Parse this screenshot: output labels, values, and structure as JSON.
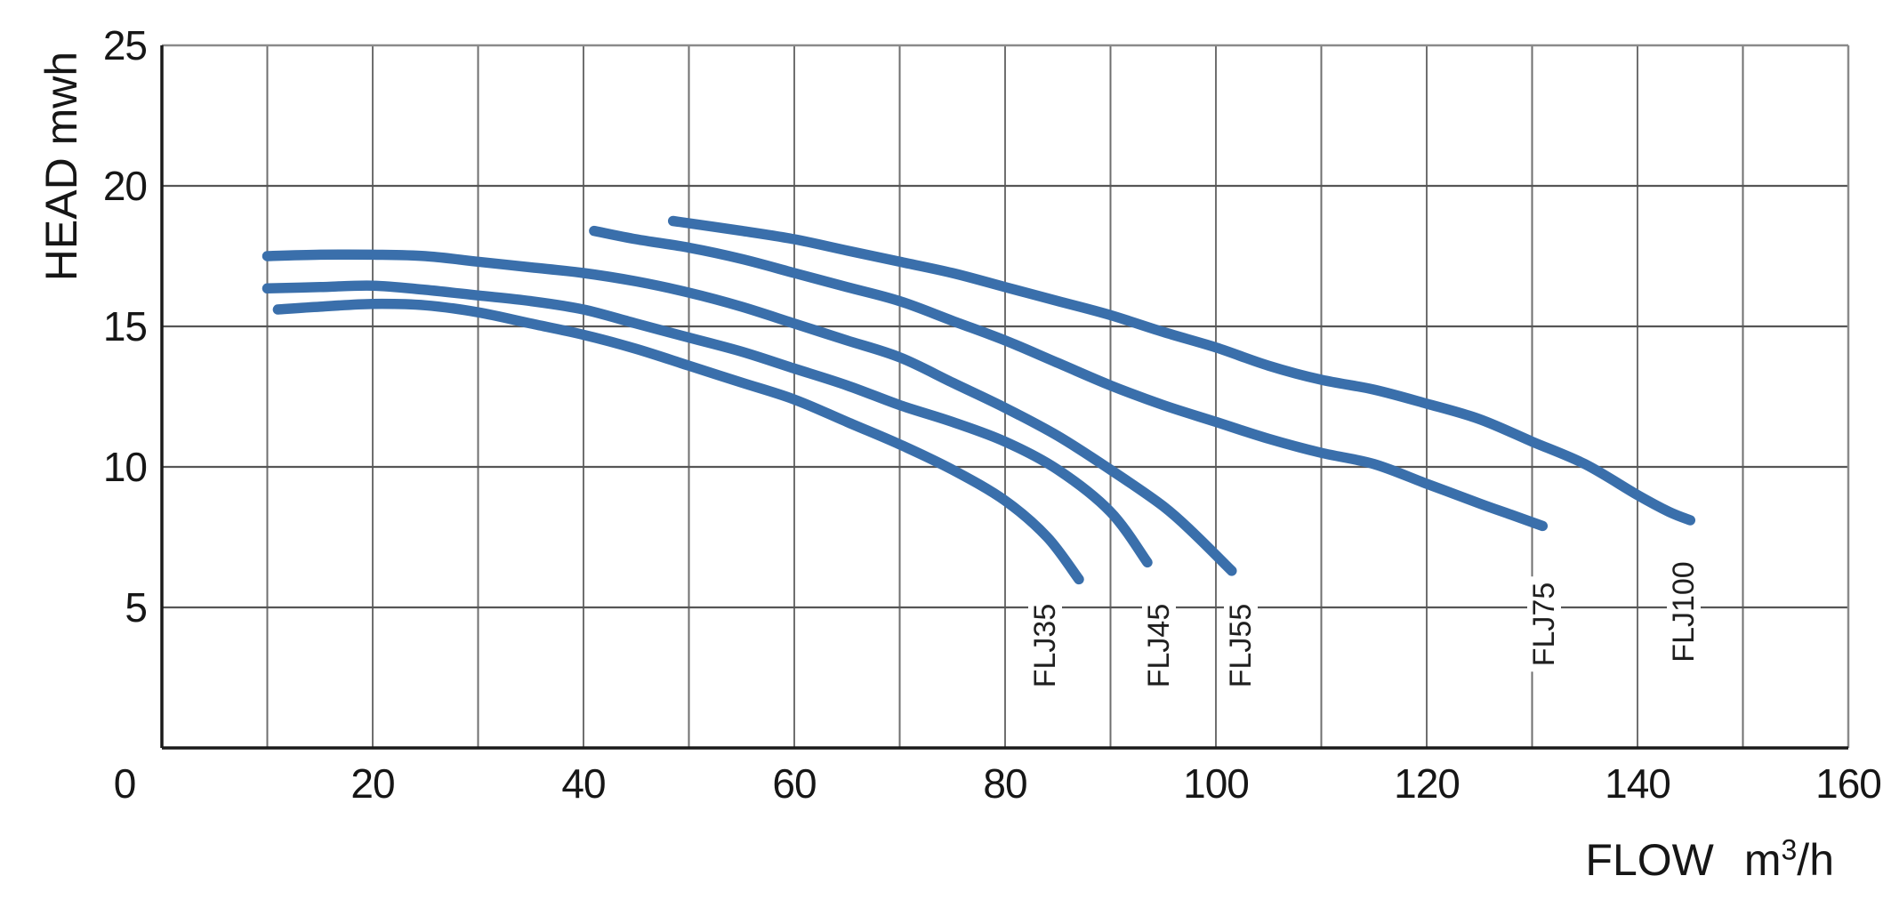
{
  "chart_data": {
    "type": "line",
    "title": "",
    "xlabel": "FLOW m3/h",
    "xlabel_parts": {
      "prefix": "FLOW",
      "unit_base": "m",
      "unit_sup": "3",
      "unit_suffix": "/h"
    },
    "ylabel": "HEAD mwh",
    "x_axis": {
      "min": 0,
      "max": 160,
      "label_step": 20,
      "grid_step": 10,
      "ticks": [
        0,
        20,
        40,
        60,
        80,
        100,
        120,
        140,
        160
      ]
    },
    "y_axis": {
      "min": 0,
      "max": 25,
      "label_step": 5,
      "grid_step": 5,
      "ticks": [
        5,
        10,
        15,
        20,
        25
      ]
    },
    "grid": true,
    "legend_position": "labels-at-curve-ends",
    "curve_color": "#3a6fab",
    "series": [
      {
        "name": "FLJ35",
        "label_pos": {
          "flow": 83.8,
          "head": 3.65
        },
        "points": [
          [
            11,
            15.6
          ],
          [
            15,
            15.7
          ],
          [
            20,
            15.8
          ],
          [
            25,
            15.75
          ],
          [
            30,
            15.5
          ],
          [
            35,
            15.1
          ],
          [
            40,
            14.7
          ],
          [
            45,
            14.2
          ],
          [
            50,
            13.6
          ],
          [
            55,
            13.0
          ],
          [
            60,
            12.4
          ],
          [
            65,
            11.6
          ],
          [
            70,
            10.8
          ],
          [
            75,
            9.9
          ],
          [
            80,
            8.8
          ],
          [
            84,
            7.5
          ],
          [
            87,
            6.0
          ]
        ]
      },
      {
        "name": "FLJ45",
        "label_pos": {
          "flow": 94.6,
          "head": 3.65
        },
        "points": [
          [
            10,
            16.35
          ],
          [
            15,
            16.4
          ],
          [
            20,
            16.45
          ],
          [
            25,
            16.3
          ],
          [
            30,
            16.1
          ],
          [
            35,
            15.9
          ],
          [
            40,
            15.6
          ],
          [
            45,
            15.1
          ],
          [
            50,
            14.6
          ],
          [
            55,
            14.1
          ],
          [
            60,
            13.5
          ],
          [
            65,
            12.9
          ],
          [
            70,
            12.2
          ],
          [
            75,
            11.6
          ],
          [
            80,
            10.9
          ],
          [
            85,
            9.9
          ],
          [
            90,
            8.4
          ],
          [
            93.5,
            6.6
          ]
        ]
      },
      {
        "name": "FLJ55",
        "label_pos": {
          "flow": 102.4,
          "head": 3.65
        },
        "points": [
          [
            10,
            17.5
          ],
          [
            15,
            17.55
          ],
          [
            20,
            17.55
          ],
          [
            25,
            17.5
          ],
          [
            30,
            17.3
          ],
          [
            35,
            17.1
          ],
          [
            40,
            16.9
          ],
          [
            45,
            16.6
          ],
          [
            50,
            16.2
          ],
          [
            55,
            15.7
          ],
          [
            60,
            15.1
          ],
          [
            65,
            14.5
          ],
          [
            70,
            13.9
          ],
          [
            75,
            13.0
          ],
          [
            80,
            12.1
          ],
          [
            85,
            11.1
          ],
          [
            90,
            9.9
          ],
          [
            95,
            8.6
          ],
          [
            98,
            7.6
          ],
          [
            101.5,
            6.3
          ]
        ]
      },
      {
        "name": "FLJ75",
        "label_pos": {
          "flow": 131.1,
          "head": 4.4
        },
        "points": [
          [
            41,
            18.4
          ],
          [
            45,
            18.1
          ],
          [
            50,
            17.8
          ],
          [
            55,
            17.4
          ],
          [
            60,
            16.9
          ],
          [
            65,
            16.4
          ],
          [
            70,
            15.9
          ],
          [
            75,
            15.2
          ],
          [
            80,
            14.5
          ],
          [
            85,
            13.7
          ],
          [
            90,
            12.9
          ],
          [
            95,
            12.2
          ],
          [
            100,
            11.6
          ],
          [
            105,
            11.0
          ],
          [
            110,
            10.5
          ],
          [
            115,
            10.1
          ],
          [
            120,
            9.4
          ],
          [
            125,
            8.7
          ],
          [
            128,
            8.3
          ],
          [
            131,
            7.9
          ]
        ]
      },
      {
        "name": "FLJ100",
        "label_pos": {
          "flow": 144.4,
          "head": 4.85
        },
        "points": [
          [
            48.5,
            18.75
          ],
          [
            55,
            18.4
          ],
          [
            60,
            18.1
          ],
          [
            65,
            17.7
          ],
          [
            70,
            17.3
          ],
          [
            75,
            16.9
          ],
          [
            80,
            16.4
          ],
          [
            85,
            15.9
          ],
          [
            90,
            15.4
          ],
          [
            95,
            14.8
          ],
          [
            100,
            14.25
          ],
          [
            105,
            13.6
          ],
          [
            110,
            13.1
          ],
          [
            115,
            12.75
          ],
          [
            120,
            12.25
          ],
          [
            125,
            11.7
          ],
          [
            130,
            10.9
          ],
          [
            135,
            10.1
          ],
          [
            140,
            9.0
          ],
          [
            143,
            8.4
          ],
          [
            145,
            8.1
          ]
        ]
      }
    ],
    "colors": {
      "curve": "#3a6fab",
      "grid_vertical": "#6f6f6f",
      "grid_horizontal": "#565656",
      "axis": "#1a1a1a",
      "border_light": "#8a8a8a",
      "text": "#161616"
    }
  }
}
